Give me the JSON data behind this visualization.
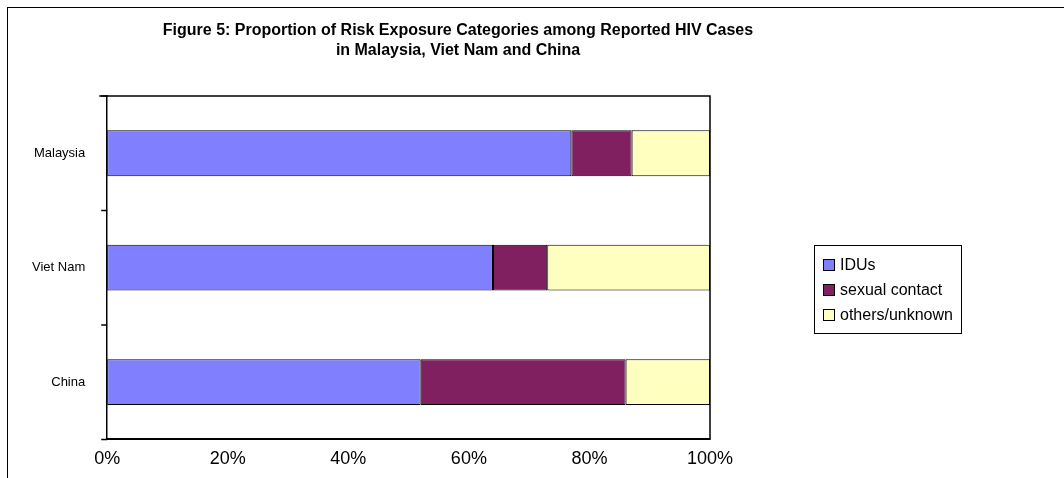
{
  "chart_data": {
    "type": "bar",
    "orientation": "horizontal",
    "stacked": true,
    "title": "Figure 5: Proportion of Risk Exposure Categories among Reported HIV Cases in Malaysia, Viet Nam and China",
    "categories": [
      "Malaysia",
      "Viet Nam",
      "China"
    ],
    "series": [
      {
        "name": "IDUs",
        "color": "#8080ff",
        "values": [
          77,
          64,
          52
        ]
      },
      {
        "name": "sexual contact",
        "color": "#802060",
        "values": [
          10,
          9,
          34
        ]
      },
      {
        "name": "others/unknown",
        "color": "#ffffc0",
        "values": [
          13,
          27,
          14
        ]
      }
    ],
    "xlim": [
      0,
      100
    ],
    "xticks": [
      {
        "value": 0,
        "label": "0%"
      },
      {
        "value": 20,
        "label": "20%"
      },
      {
        "value": 40,
        "label": "40%"
      },
      {
        "value": 60,
        "label": "60%"
      },
      {
        "value": 80,
        "label": "80%"
      },
      {
        "value": 100,
        "label": "100%"
      }
    ],
    "legend": "right",
    "grid": false
  }
}
